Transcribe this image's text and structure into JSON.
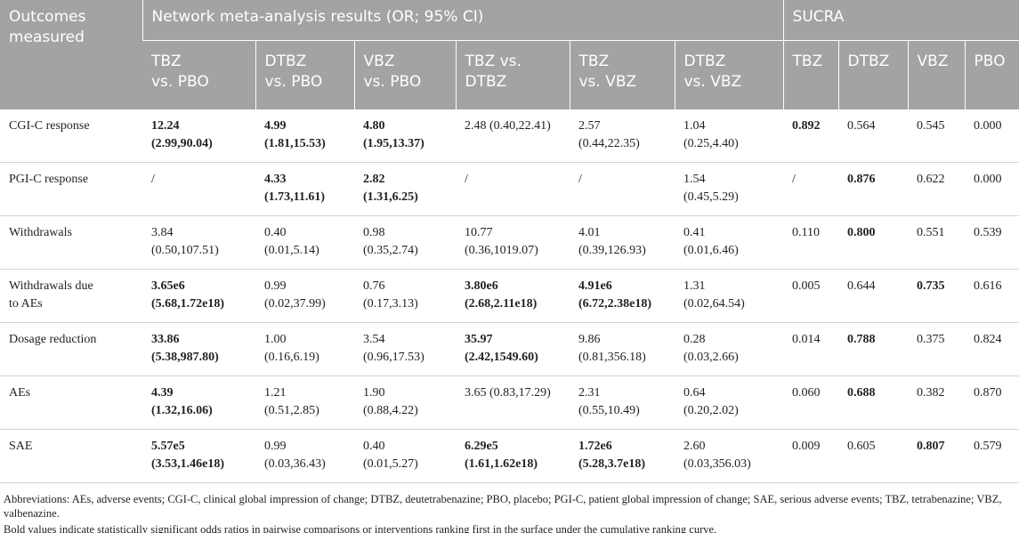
{
  "header": {
    "outcomes": [
      "Outcomes",
      "measured"
    ],
    "nma": "Network meta-analysis results (OR; 95% CI)",
    "sucra": "SUCRA",
    "columns": [
      [
        "TBZ",
        "vs. PBO"
      ],
      [
        "DTBZ",
        "vs. PBO"
      ],
      [
        "VBZ",
        "vs. PBO"
      ],
      [
        "TBZ vs.",
        "DTBZ"
      ],
      [
        "TBZ",
        "vs. VBZ"
      ],
      [
        "DTBZ",
        "vs. VBZ"
      ],
      [
        "TBZ"
      ],
      [
        "DTBZ"
      ],
      [
        "VBZ"
      ],
      [
        "PBO"
      ]
    ]
  },
  "table": {
    "rows": [
      {
        "label": [
          "CGI-C response"
        ],
        "cells": [
          {
            "lines": [
              "12.24",
              "(2.99,90.04)"
            ],
            "bold": true
          },
          {
            "lines": [
              "4.99",
              "(1.81,15.53)"
            ],
            "bold": true
          },
          {
            "lines": [
              "4.80",
              "(1.95,13.37)"
            ],
            "bold": true
          },
          {
            "lines": [
              "2.48 (0.40,22.41)"
            ]
          },
          {
            "lines": [
              "2.57",
              "(0.44,22.35)"
            ]
          },
          {
            "lines": [
              "1.04",
              "(0.25,4.40)"
            ]
          },
          {
            "lines": [
              "0.892"
            ],
            "bold": true
          },
          {
            "lines": [
              "0.564"
            ]
          },
          {
            "lines": [
              "0.545"
            ]
          },
          {
            "lines": [
              "0.000"
            ]
          }
        ]
      },
      {
        "label": [
          "PGI-C response"
        ],
        "cells": [
          {
            "lines": [
              "/"
            ]
          },
          {
            "lines": [
              "4.33",
              "(1.73,11.61)"
            ],
            "bold": true
          },
          {
            "lines": [
              "2.82",
              "(1.31,6.25)"
            ],
            "bold": true
          },
          {
            "lines": [
              "/"
            ]
          },
          {
            "lines": [
              "/"
            ]
          },
          {
            "lines": [
              "1.54",
              "(0.45,5.29)"
            ]
          },
          {
            "lines": [
              "/"
            ]
          },
          {
            "lines": [
              "0.876"
            ],
            "bold": true
          },
          {
            "lines": [
              "0.622"
            ]
          },
          {
            "lines": [
              "0.000"
            ]
          }
        ]
      },
      {
        "label": [
          "Withdrawals"
        ],
        "cells": [
          {
            "lines": [
              "3.84",
              "(0.50,107.51)"
            ]
          },
          {
            "lines": [
              "0.40",
              "(0.01,5.14)"
            ]
          },
          {
            "lines": [
              "0.98",
              "(0.35,2.74)"
            ]
          },
          {
            "lines": [
              "10.77",
              "(0.36,1019.07)"
            ]
          },
          {
            "lines": [
              "4.01",
              "(0.39,126.93)"
            ]
          },
          {
            "lines": [
              "0.41",
              "(0.01,6.46)"
            ]
          },
          {
            "lines": [
              "0.110"
            ]
          },
          {
            "lines": [
              "0.800"
            ],
            "bold": true
          },
          {
            "lines": [
              "0.551"
            ]
          },
          {
            "lines": [
              "0.539"
            ]
          }
        ]
      },
      {
        "label": [
          "Withdrawals due",
          "to AEs"
        ],
        "cells": [
          {
            "lines": [
              "3.65e6",
              "(5.68,1.72e18)"
            ],
            "bold": true
          },
          {
            "lines": [
              "0.99",
              "(0.02,37.99)"
            ]
          },
          {
            "lines": [
              "0.76",
              "(0.17,3.13)"
            ]
          },
          {
            "lines": [
              "3.80e6",
              "(2.68,2.11e18)"
            ],
            "bold": true
          },
          {
            "lines": [
              "4.91e6",
              "(6.72,2.38e18)"
            ],
            "bold": true
          },
          {
            "lines": [
              "1.31",
              "(0.02,64.54)"
            ]
          },
          {
            "lines": [
              "0.005"
            ]
          },
          {
            "lines": [
              "0.644"
            ]
          },
          {
            "lines": [
              "0.735"
            ],
            "bold": true
          },
          {
            "lines": [
              "0.616"
            ]
          }
        ]
      },
      {
        "label": [
          "Dosage reduction"
        ],
        "cells": [
          {
            "lines": [
              "33.86",
              "(5.38,987.80)"
            ],
            "bold": true
          },
          {
            "lines": [
              "1.00",
              "(0.16,6.19)"
            ]
          },
          {
            "lines": [
              "3.54",
              "(0.96,17.53)"
            ]
          },
          {
            "lines": [
              "35.97",
              "(2.42,1549.60)"
            ],
            "bold": true
          },
          {
            "lines": [
              "9.86",
              "(0.81,356.18)"
            ]
          },
          {
            "lines": [
              "0.28",
              "(0.03,2.66)"
            ]
          },
          {
            "lines": [
              "0.014"
            ]
          },
          {
            "lines": [
              "0.788"
            ],
            "bold": true
          },
          {
            "lines": [
              "0.375"
            ]
          },
          {
            "lines": [
              "0.824"
            ]
          }
        ]
      },
      {
        "label": [
          "AEs"
        ],
        "cells": [
          {
            "lines": [
              "4.39",
              "(1.32,16.06)"
            ],
            "bold": true
          },
          {
            "lines": [
              "1.21",
              "(0.51,2.85)"
            ]
          },
          {
            "lines": [
              "1.90",
              "(0.88,4.22)"
            ]
          },
          {
            "lines": [
              "3.65 (0.83,17.29)"
            ]
          },
          {
            "lines": [
              "2.31",
              "(0.55,10.49)"
            ]
          },
          {
            "lines": [
              "0.64",
              "(0.20,2.02)"
            ]
          },
          {
            "lines": [
              "0.060"
            ]
          },
          {
            "lines": [
              "0.688"
            ],
            "bold": true
          },
          {
            "lines": [
              "0.382"
            ]
          },
          {
            "lines": [
              "0.870"
            ]
          }
        ]
      },
      {
        "label": [
          "SAE"
        ],
        "cells": [
          {
            "lines": [
              "5.57e5",
              "(3.53,1.46e18)"
            ],
            "bold": true
          },
          {
            "lines": [
              "0.99",
              "(0.03,36.43)"
            ]
          },
          {
            "lines": [
              "0.40",
              "(0.01,5.27)"
            ]
          },
          {
            "lines": [
              "6.29e5",
              "(1.61,1.62e18)"
            ],
            "bold": true
          },
          {
            "lines": [
              "1.72e6",
              "(5.28,3.7e18)"
            ],
            "bold": true
          },
          {
            "lines": [
              "2.60",
              "(0.03,356.03)"
            ]
          },
          {
            "lines": [
              "0.009"
            ]
          },
          {
            "lines": [
              "0.605"
            ]
          },
          {
            "lines": [
              "0.807"
            ],
            "bold": true
          },
          {
            "lines": [
              "0.579"
            ]
          }
        ]
      }
    ]
  },
  "notes": [
    "Abbreviations: AEs, adverse events; CGI-C, clinical global impression of change; DTBZ, deutetrabenazine; PBO, placebo; PGI-C, patient global impression of change; SAE, serious adverse events; TBZ, tetrabenazine; VBZ, valbenazine.",
    "Bold values indicate statistically significant odds ratios in pairwise comparisons or interventions ranking first in the surface under the cumulative ranking curve."
  ]
}
